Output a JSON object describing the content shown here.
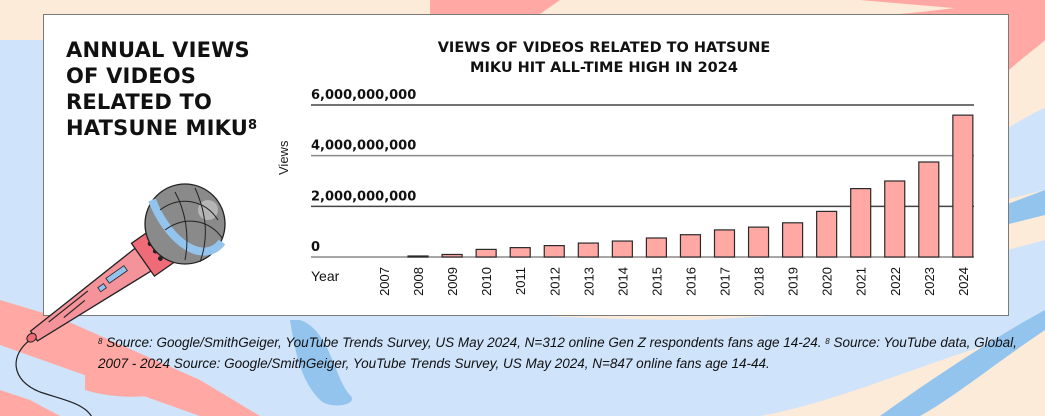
{
  "side_title": {
    "lines": [
      "ANNUAL VIEWS",
      "OF VIDEOS",
      "RELATED TO",
      "HATSUNE MIKU"
    ],
    "footnote_marker": "8"
  },
  "chart_data": {
    "type": "bar",
    "title": "VIEWS OF VIDEOS RELATED TO HATSUNE MIKU HIT ALL-TIME HIGH IN 2024",
    "title_lines": [
      "VIEWS OF VIDEOS RELATED TO HATSUNE",
      "MIKU HIT ALL-TIME HIGH IN 2024"
    ],
    "xlabel": "Year",
    "ylabel": "Views",
    "categories": [
      "2007",
      "2008",
      "2009",
      "2010",
      "2011",
      "2012",
      "2013",
      "2014",
      "2015",
      "2016",
      "2017",
      "2018",
      "2019",
      "2020",
      "2021",
      "2022",
      "2023",
      "2024"
    ],
    "values": [
      0,
      40000000,
      100000000,
      300000000,
      370000000,
      450000000,
      550000000,
      630000000,
      750000000,
      880000000,
      1070000000,
      1180000000,
      1350000000,
      1800000000,
      2700000000,
      3000000000,
      3750000000,
      5600000000
    ],
    "ylim": [
      0,
      6000000000
    ],
    "yticks": [
      0,
      2000000000,
      4000000000,
      6000000000
    ],
    "ytick_labels": [
      "0",
      "2,000,000,000",
      "4,000,000,000",
      "6,000,000,000"
    ],
    "grid": true,
    "legend": null,
    "colors": {
      "bar_fill": "#ffa8a4",
      "bar_stroke": "#2a2a2a",
      "gridline": "#555555"
    }
  },
  "footnote": {
    "marker": "8",
    "line1_a": "Source: Google/SmithGeiger, YouTube Trends Survey, US May 2024, N=312 online Gen Z respondents fans age 14-24.",
    "line1_b": "Source: YouTube data, Global, 2007 - 2024 Source: Google/SmithGeiger, YouTube Trends Survey, US May 2024, N=847 online fans age 14-44."
  },
  "illustration": {
    "icon": "microphone-icon"
  },
  "colors": {
    "background": "#fdebd9",
    "pink_stripe": "#ffa8a4",
    "light_blue": "#cfe3fa",
    "mid_blue": "#93c4ee"
  }
}
